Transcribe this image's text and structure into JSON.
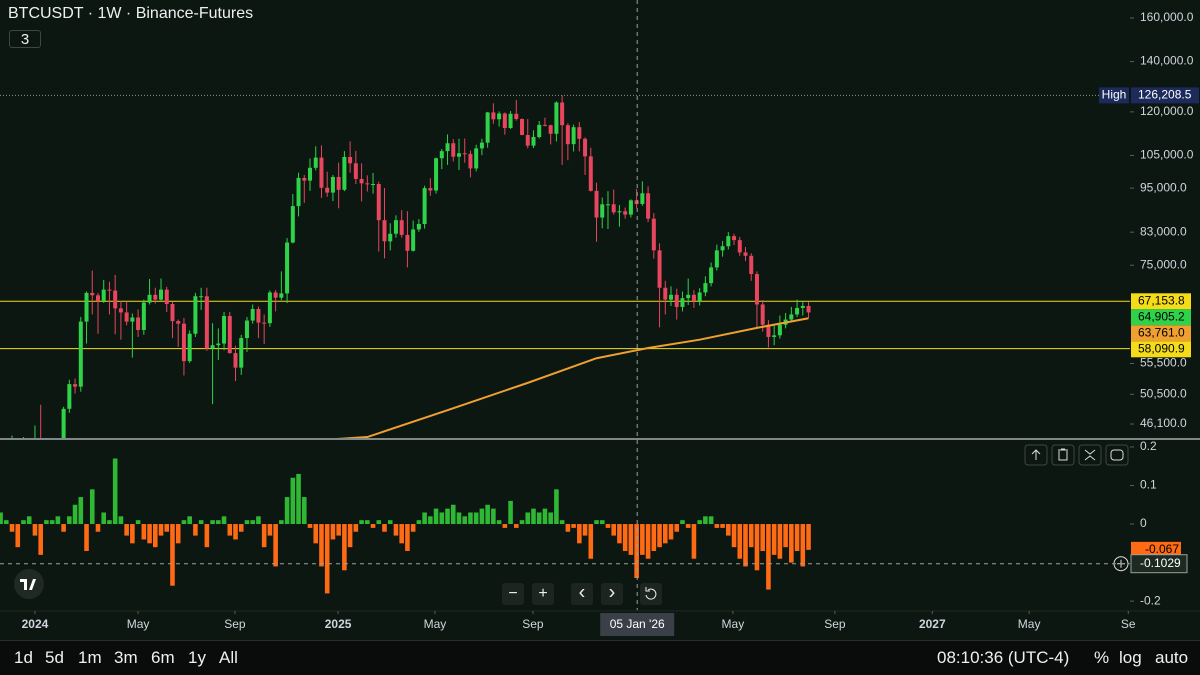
{
  "ui": {
    "symbol": "BTCUSDT · 1W · Binance-Futures",
    "collapsed_count": "3",
    "zoom_out": "−",
    "zoom_in": "+",
    "scroll_left": "‹",
    "scroll_right": "›",
    "ranges": [
      "1d",
      "5d",
      "1m",
      "3m",
      "6m",
      "1y",
      "All"
    ],
    "clock": "08:10:36 (UTC-4)",
    "percent": "%",
    "log": "log",
    "auto": "auto"
  },
  "chart_data": [
    {
      "type": "candlestick",
      "log_scale": true,
      "up_color": "#2fd34a",
      "down_color": "#e8455e",
      "xlim": [
        -0.1,
        197.1
      ],
      "xticks": [
        {
          "value": 6.0,
          "label": "2024"
        },
        {
          "value": 24.0,
          "label": "May"
        },
        {
          "value": 40.9,
          "label": "Sep"
        },
        {
          "value": 58.9,
          "label": "2025"
        },
        {
          "value": 75.8,
          "label": "May"
        },
        {
          "value": 92.9,
          "label": "Sep"
        },
        {
          "value": 127.8,
          "label": "May"
        },
        {
          "value": 145.6,
          "label": "Sep"
        },
        {
          "value": 162.6,
          "label": "2027"
        },
        {
          "value": 179.5,
          "label": "May"
        },
        {
          "value": 196.8,
          "label": "Se"
        }
      ],
      "crosshair_x": {
        "value": 111.1,
        "label": "05 Jan '26"
      },
      "ylim": [
        44170,
        169070
      ],
      "yticks": [
        {
          "value": 160000,
          "label": "160,000.0"
        },
        {
          "value": 140000,
          "label": "140,000.0"
        },
        {
          "value": 120000,
          "label": "120,000.0"
        },
        {
          "value": 105000,
          "label": "105,000.0"
        },
        {
          "value": 95000,
          "label": "95,000.0"
        },
        {
          "value": 83000,
          "label": "83,000.0"
        },
        {
          "value": 75000,
          "label": "75,000.0"
        },
        {
          "value": 55500,
          "label": "55,500.0"
        },
        {
          "value": 50500,
          "label": "50,500.0"
        },
        {
          "value": 46100,
          "label": "46,100.0"
        }
      ],
      "high": {
        "name": "High",
        "value": 126208.5,
        "label": "126,208.5"
      },
      "price_lines": [
        {
          "value": 67153.8,
          "label": "67,153.8",
          "color": "#f5dc1a"
        },
        {
          "value": 58090.9,
          "label": "58,090.9",
          "color": "#f5dc1a"
        }
      ],
      "last_label": "64,905.2",
      "ma": {
        "color": "#f0a030",
        "x": [
          58,
          64,
          78,
          92,
          104,
          113,
          122,
          132,
          141
        ],
        "values": [
          44000,
          44300,
          48100,
          52300,
          56400,
          58200,
          59700,
          61900,
          63761.0
        ],
        "last_label": "63,761.0"
      },
      "candles": [
        [
          35500,
          38000,
          35100,
          37400
        ],
        [
          37400,
          39800,
          36900,
          39500
        ],
        [
          39500,
          44500,
          39300,
          43800
        ],
        [
          43800,
          44000,
          40200,
          41400
        ],
        [
          41400,
          44300,
          40600,
          43700
        ],
        [
          43700,
          43900,
          41600,
          42300
        ],
        [
          42300,
          45900,
          40800,
          43900
        ],
        [
          43900,
          48900,
          41500,
          41700
        ],
        [
          41700,
          43400,
          40300,
          41600
        ],
        [
          41600,
          42800,
          38600,
          42000
        ],
        [
          42000,
          43900,
          41800,
          42600
        ],
        [
          42600,
          48600,
          42300,
          48300
        ],
        [
          48300,
          52800,
          47700,
          52100
        ],
        [
          52100,
          53000,
          50600,
          51700
        ],
        [
          51700,
          64000,
          50900,
          63100
        ],
        [
          63100,
          69200,
          59000,
          68900
        ],
        [
          68900,
          73800,
          64500,
          68400
        ],
        [
          68400,
          68900,
          60800,
          67200
        ],
        [
          67200,
          71700,
          66800,
          69600
        ],
        [
          69600,
          71300,
          64500,
          69400
        ],
        [
          69400,
          72800,
          60700,
          65700
        ],
        [
          65700,
          67200,
          59700,
          64900
        ],
        [
          64900,
          67000,
          62400,
          63100
        ],
        [
          63100,
          64700,
          56500,
          63900
        ],
        [
          63900,
          65500,
          60200,
          61500
        ],
        [
          61500,
          67500,
          60600,
          66900
        ],
        [
          66900,
          71900,
          66500,
          68500
        ],
        [
          68500,
          70000,
          66700,
          67500
        ],
        [
          67500,
          72000,
          67300,
          69600
        ],
        [
          69600,
          70200,
          65000,
          66600
        ],
        [
          66600,
          67000,
          60000,
          63200
        ],
        [
          63200,
          63500,
          58400,
          62700
        ],
        [
          62700,
          63800,
          53500,
          55900
        ],
        [
          55900,
          61400,
          55600,
          60800
        ],
        [
          60800,
          68900,
          60200,
          68200
        ],
        [
          68200,
          70000,
          65400,
          68200
        ],
        [
          68200,
          70000,
          57700,
          58100
        ],
        [
          58100,
          62800,
          49000,
          58700
        ],
        [
          58700,
          61800,
          56100,
          59000
        ],
        [
          59000,
          65000,
          57800,
          64200
        ],
        [
          64200,
          65000,
          57200,
          57300
        ],
        [
          57300,
          58600,
          52600,
          54800
        ],
        [
          54800,
          60600,
          53600,
          60000
        ],
        [
          60000,
          64000,
          57500,
          63300
        ],
        [
          63300,
          66500,
          62700,
          65600
        ],
        [
          65600,
          66100,
          60000,
          62900
        ],
        [
          62900,
          64500,
          58900,
          62800
        ],
        [
          62800,
          69400,
          62100,
          69000
        ],
        [
          69000,
          69500,
          65100,
          67900
        ],
        [
          67900,
          73600,
          67400,
          68800
        ],
        [
          68800,
          81500,
          66800,
          80400
        ],
        [
          80400,
          93300,
          80200,
          89900
        ],
        [
          89900,
          99600,
          87100,
          98000
        ],
        [
          98000,
          98900,
          90800,
          97200
        ],
        [
          97200,
          104000,
          94200,
          101100
        ],
        [
          101100,
          108000,
          100300,
          104300
        ],
        [
          104300,
          108300,
          92200,
          95100
        ],
        [
          95100,
          99900,
          92500,
          93700
        ],
        [
          93700,
          98900,
          91300,
          98300
        ],
        [
          98300,
          102700,
          89300,
          94500
        ],
        [
          94500,
          106400,
          94100,
          104500
        ],
        [
          104500,
          109600,
          99600,
          102500
        ],
        [
          102500,
          106500,
          96200,
          97700
        ],
        [
          97700,
          102500,
          91200,
          96400
        ],
        [
          96400,
          98800,
          94000,
          96100
        ],
        [
          96100,
          99500,
          93400,
          96200
        ],
        [
          96200,
          96900,
          78200,
          86100
        ],
        [
          86100,
          95000,
          76600,
          80700
        ],
        [
          80700,
          85300,
          78500,
          82600
        ],
        [
          82600,
          87400,
          81600,
          86100
        ],
        [
          86100,
          88800,
          81600,
          82300
        ],
        [
          82300,
          88500,
          74500,
          78400
        ],
        [
          78400,
          86000,
          78200,
          83700
        ],
        [
          83700,
          86400,
          83100,
          85100
        ],
        [
          85100,
          95700,
          83900,
          95000
        ],
        [
          95000,
          97900,
          92800,
          94300
        ],
        [
          94300,
          104300,
          93400,
          104100
        ],
        [
          104100,
          107100,
          100700,
          106400
        ],
        [
          106400,
          112000,
          102000,
          109000
        ],
        [
          109000,
          110400,
          103100,
          104600
        ],
        [
          104600,
          110500,
          100400,
          105700
        ],
        [
          105700,
          110600,
          102700,
          105500
        ],
        [
          105500,
          106600,
          98200,
          100900
        ],
        [
          100900,
          108500,
          100000,
          107300
        ],
        [
          107300,
          110500,
          105100,
          109200
        ],
        [
          109200,
          120000,
          107500,
          119800
        ],
        [
          119800,
          123200,
          115700,
          117300
        ],
        [
          117300,
          120200,
          114700,
          119400
        ],
        [
          119400,
          119800,
          111900,
          114200
        ],
        [
          114200,
          120300,
          113900,
          119300
        ],
        [
          119300,
          124500,
          116800,
          117400
        ],
        [
          117400,
          117600,
          111700,
          111800
        ],
        [
          111800,
          117400,
          107300,
          108200
        ],
        [
          108200,
          113400,
          107400,
          111100
        ],
        [
          111100,
          116700,
          110600,
          115300
        ],
        [
          115300,
          117900,
          114800,
          115200
        ],
        [
          115200,
          115400,
          108600,
          112200
        ],
        [
          112200,
          123900,
          109600,
          123500
        ],
        [
          123500,
          126208.5,
          102000,
          115200
        ],
        [
          115200,
          115900,
          103500,
          108700
        ],
        [
          108700,
          115400,
          106300,
          114500
        ],
        [
          114500,
          116300,
          106300,
          110500
        ],
        [
          110500,
          111000,
          98900,
          104700
        ],
        [
          104700,
          107500,
          94000,
          94200
        ],
        [
          94200,
          96600,
          80600,
          86800
        ],
        [
          86800,
          92300,
          84000,
          90400
        ],
        [
          90400,
          94100,
          83800,
          90400
        ],
        [
          90400,
          94600,
          87600,
          88200
        ],
        [
          88200,
          90200,
          84400,
          88500
        ],
        [
          88500,
          89500,
          86500,
          87600
        ],
        [
          87600,
          91800,
          86800,
          91500
        ],
        [
          91500,
          94800,
          89300,
          90500
        ],
        [
          90500,
          97000,
          90000,
          93500
        ],
        [
          93500,
          95500,
          85600,
          86500
        ],
        [
          86500,
          88000,
          76500,
          78500
        ],
        [
          78500,
          80200,
          62000,
          70000
        ],
        [
          70000,
          71500,
          64500,
          67500
        ],
        [
          67500,
          70300,
          66200,
          68500
        ],
        [
          68500,
          69800,
          63500,
          66000
        ],
        [
          66000,
          69200,
          65100,
          67800
        ],
        [
          67800,
          72000,
          66400,
          68500
        ],
        [
          68500,
          69500,
          65800,
          67200
        ],
        [
          67200,
          69900,
          66300,
          69000
        ],
        [
          69000,
          72500,
          68200,
          71000
        ],
        [
          71000,
          75600,
          70300,
          74500
        ],
        [
          74500,
          79900,
          73800,
          78500
        ],
        [
          78500,
          80800,
          77000,
          79500
        ],
        [
          79500,
          83000,
          78700,
          82000
        ],
        [
          82000,
          82600,
          79800,
          81000
        ],
        [
          81000,
          81800,
          77200,
          78000
        ],
        [
          78000,
          79300,
          76000,
          77200
        ],
        [
          77200,
          77800,
          71500,
          73000
        ],
        [
          73000,
          73600,
          62000,
          66500
        ],
        [
          66500,
          67400,
          61200,
          62500
        ],
        [
          62500,
          63400,
          58300,
          60200
        ],
        [
          60200,
          62400,
          58700,
          60500
        ],
        [
          60500,
          64300,
          59900,
          62500
        ],
        [
          62500,
          64800,
          61800,
          63500
        ],
        [
          63500,
          66000,
          63000,
          64500
        ],
        [
          64500,
          67500,
          64000,
          65800
        ],
        [
          65800,
          67200,
          64300,
          66200
        ],
        [
          66200,
          67000,
          63800,
          64905.2
        ]
      ]
    },
    {
      "type": "bar",
      "up_color": "#2fb834",
      "down_color": "#ff6a14",
      "ylim": [
        -0.223,
        0.218
      ],
      "yticks": [
        0.2,
        0.1,
        0,
        -0.2
      ],
      "crosshair_y": {
        "value": -0.1029,
        "label": "-0.1029"
      },
      "values": [
        0.03,
        0.01,
        -0.02,
        -0.06,
        0.01,
        0.02,
        -0.03,
        -0.08,
        0.01,
        0.01,
        0.02,
        -0.02,
        0.02,
        0.05,
        0.07,
        -0.07,
        0.09,
        -0.02,
        0.03,
        0.01,
        0.17,
        0.02,
        -0.03,
        -0.05,
        0.01,
        -0.04,
        -0.05,
        -0.06,
        -0.03,
        -0.02,
        -0.16,
        -0.05,
        0.01,
        0.02,
        -0.03,
        0.01,
        -0.06,
        0.01,
        0.01,
        0.02,
        -0.03,
        -0.04,
        -0.02,
        0.01,
        0.01,
        0.02,
        -0.06,
        -0.03,
        -0.11,
        0.01,
        0.07,
        0.12,
        0.13,
        0.07,
        -0.01,
        -0.05,
        -0.11,
        -0.18,
        -0.04,
        -0.03,
        -0.12,
        -0.06,
        -0.02,
        0.01,
        0.01,
        -0.01,
        0.01,
        -0.02,
        0.01,
        -0.03,
        -0.05,
        -0.07,
        -0.02,
        0.01,
        0.03,
        0.02,
        0.04,
        0.03,
        0.04,
        0.05,
        0.03,
        0.02,
        0.03,
        0.03,
        0.04,
        0.05,
        0.04,
        0.01,
        -0.01,
        0.06,
        -0.01,
        0.01,
        0.03,
        0.04,
        0.03,
        0.04,
        0.03,
        0.09,
        0.01,
        -0.02,
        -0.01,
        -0.05,
        -0.03,
        -0.09,
        0.01,
        0.01,
        -0.01,
        -0.03,
        -0.05,
        -0.07,
        -0.08,
        -0.14,
        -0.08,
        -0.09,
        -0.07,
        -0.06,
        -0.05,
        -0.04,
        -0.02,
        0.01,
        -0.01,
        -0.09,
        0.01,
        0.02,
        0.02,
        -0.01,
        -0.01,
        -0.03,
        -0.06,
        -0.09,
        -0.11,
        -0.06,
        -0.12,
        -0.07,
        -0.17,
        -0.08,
        -0.09,
        -0.06,
        -0.1,
        -0.07,
        -0.11,
        -0.067
      ]
    }
  ]
}
